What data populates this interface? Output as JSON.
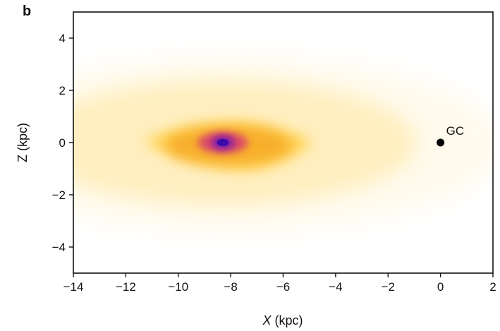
{
  "chart_data": {
    "type": "heatmap",
    "panel_label": "b",
    "xlabel_var": "X",
    "xlabel_unit": " (kpc)",
    "ylabel": "Z (kpc)",
    "xlim": [
      -14,
      2
    ],
    "ylim": [
      -5,
      5
    ],
    "x_ticks": [
      -14,
      -12,
      -10,
      -8,
      -6,
      -4,
      -2,
      0,
      2
    ],
    "x_tick_labels": [
      "−14",
      "−12",
      "−10",
      "−8",
      "−6",
      "−4",
      "−2",
      "0",
      "2"
    ],
    "y_ticks": [
      -4,
      -2,
      0,
      2,
      4
    ],
    "y_tick_labels": [
      "−4",
      "−2",
      "0",
      "2",
      "4"
    ],
    "grid": false,
    "colormap": [
      "#fff7e0",
      "#ffcf3f",
      "#f5a623",
      "#d8436e",
      "#6a10b8",
      "#3b0aa8"
    ],
    "density_peak": {
      "x": -8.3,
      "z": 0.0
    },
    "annotations": [
      {
        "label": "GC",
        "x": 0,
        "z": 0,
        "marker": "filled-circle"
      }
    ]
  }
}
